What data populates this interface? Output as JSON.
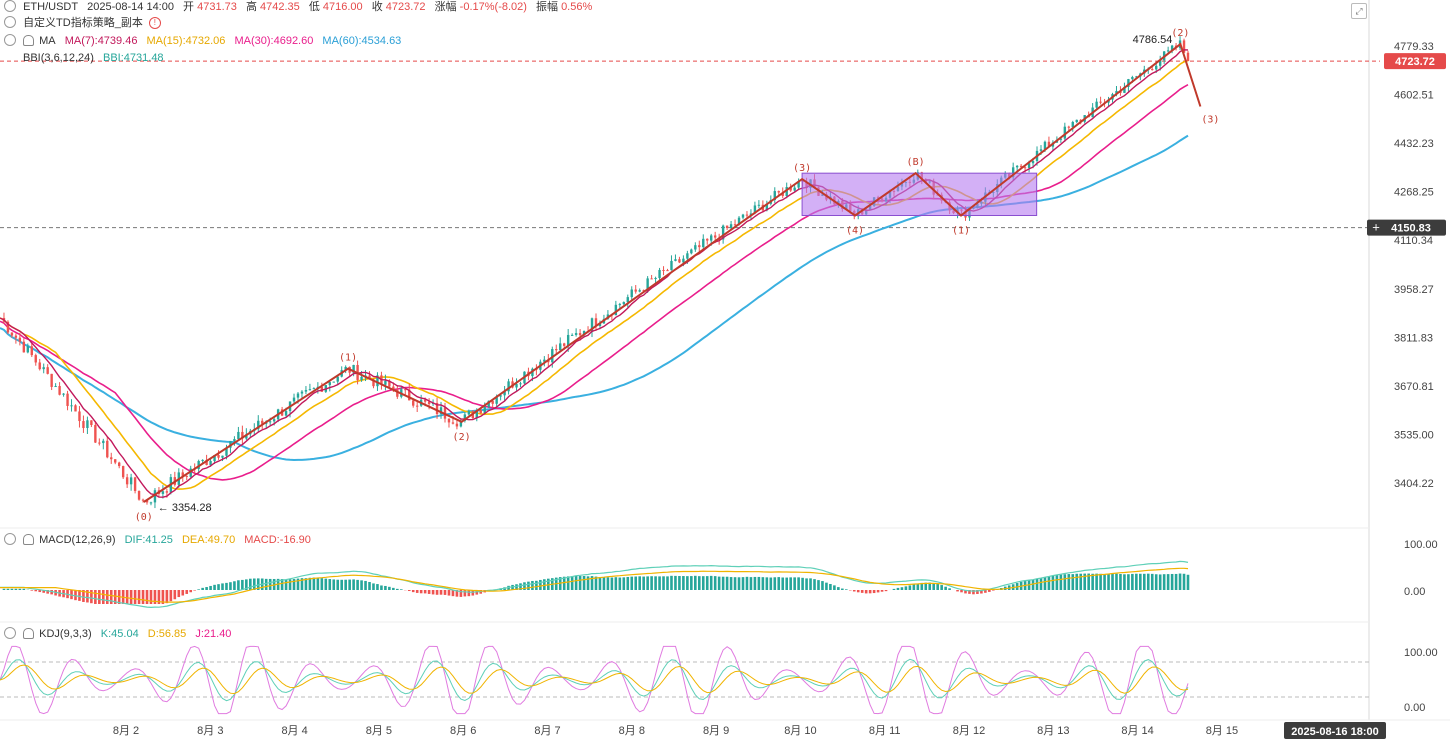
{
  "header": {
    "symbol": "ETH/USDT",
    "time": "2025-08-14 14:00",
    "open_label": "开",
    "open": "4731.73",
    "high_label": "高",
    "high": "4742.35",
    "low_label": "低",
    "low": "4716.00",
    "close_label": "收",
    "close": "4723.72",
    "change_label": "涨幅",
    "change": "-0.17%(-8.02)",
    "amp_label": "振幅",
    "amp": "0.56%",
    "indicator_name": "自定义TD指标策略_副本"
  },
  "ma": {
    "name": "MA",
    "ma7": "MA(7):4739.46",
    "ma15": "MA(15):4732.06",
    "ma30": "MA(30):4692.60",
    "ma60": "MA(60):4534.63",
    "bbi_name": "BBI(3,6,12,24)",
    "bbi": "BBI:4731.48"
  },
  "macd": {
    "name": "MACD(12,26,9)",
    "dif": "DIF:41.25",
    "dea": "DEA:49.70",
    "macd": "MACD:-16.90",
    "scale": [
      "100.00",
      "0.00"
    ]
  },
  "kdj": {
    "name": "KDJ(9,3,3)",
    "k": "K:45.04",
    "d": "D:56.85",
    "j": "J:21.40",
    "scale": [
      "100.00",
      "0.00"
    ]
  },
  "price_axis": [
    "4779.33",
    "4602.51",
    "4432.23",
    "4268.25",
    "4110.34",
    "3958.27",
    "3811.83",
    "3670.81",
    "3535.00",
    "3404.22"
  ],
  "last_price_tag": "4723.72",
  "crosshair_price_tag": "4150.83",
  "crosshair_time_tag": "2025-08-16 18:00",
  "high_mark": "4786.54",
  "low_mark": "3354.28",
  "x_labels": [
    "8月 2",
    "8月 3",
    "8月 4",
    "8月 5",
    "8月 6",
    "8月 7",
    "8月 8",
    "8月 9",
    "8月 10",
    "8月 11",
    "8月 12",
    "8月 13",
    "8月 14",
    "8月 15"
  ],
  "wave_labels": [
    "(0)",
    "(1)",
    "(2)",
    "(3)",
    "(4)",
    "(B)",
    "(1)",
    "(2)",
    "(3)"
  ],
  "colors": {
    "up": "#26a69a",
    "down": "#ef5350",
    "ma7": "#c2185b",
    "ma15": "#f5b800",
    "ma30": "#e91e8c",
    "ma60": "#3ab0e0",
    "bbi": "#26a69a",
    "wave": "#c0392b",
    "box": "#b57cf0"
  },
  "chart_data": {
    "type": "candlestick",
    "title": "ETH/USDT",
    "x_range": [
      "2025-08-01 12:00",
      "2025-08-14 14:00"
    ],
    "y_range": [
      3354.28,
      4786.54
    ],
    "key_points": [
      {
        "date": "2025-08-01 12:00",
        "price": 3870
      },
      {
        "date": "2025-08-03 02:00",
        "price": 3354.28,
        "label": "(0)"
      },
      {
        "date": "2025-08-05 08:00",
        "price": 3720,
        "label": "(1)"
      },
      {
        "date": "2025-08-06 14:00",
        "price": 3570,
        "label": "(2)"
      },
      {
        "date": "2025-08-10 08:00",
        "price": 4310,
        "label": "(3)"
      },
      {
        "date": "2025-08-10 22:00",
        "price": 4190,
        "label": "(4)"
      },
      {
        "date": "2025-08-11 14:00",
        "price": 4330,
        "label": "(B)"
      },
      {
        "date": "2025-08-12 02:00",
        "price": 4190,
        "label": "(1)"
      },
      {
        "date": "2025-08-14 12:00",
        "price": 4786.54,
        "label": "(2)"
      },
      {
        "date": "2025-08-14 14:00",
        "price": 4723.72
      }
    ],
    "projection": {
      "label": "(3)",
      "price": 4560
    },
    "consolidation_box": {
      "from": "2025-08-10 08:00",
      "to": "2025-08-12 22:00",
      "low": 4190,
      "high": 4330
    },
    "series": [
      {
        "name": "MA(7)",
        "last": 4739.46
      },
      {
        "name": "MA(15)",
        "last": 4732.06
      },
      {
        "name": "MA(30)",
        "last": 4692.6
      },
      {
        "name": "MA(60)",
        "last": 4534.63
      },
      {
        "name": "BBI",
        "last": 4731.48
      }
    ],
    "macd": {
      "dif": 41.25,
      "dea": 49.7,
      "macd": -16.9
    },
    "kdj": {
      "k": 45.04,
      "d": 56.85,
      "j": 21.4
    }
  }
}
